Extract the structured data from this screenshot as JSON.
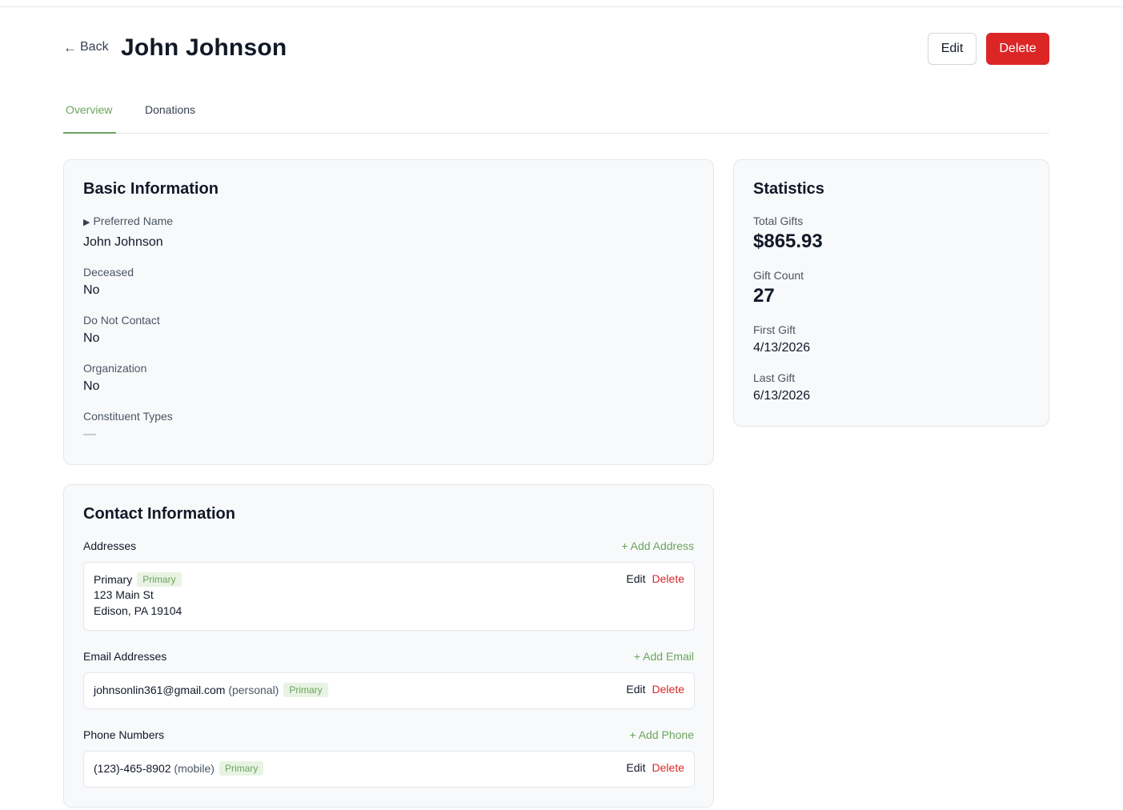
{
  "header": {
    "back_label": "Back",
    "title": "John Johnson",
    "edit_label": "Edit",
    "delete_label": "Delete"
  },
  "tabs": [
    {
      "label": "Overview",
      "active": true
    },
    {
      "label": "Donations",
      "active": false
    }
  ],
  "basic_info": {
    "title": "Basic Information",
    "preferred_name_label": "Preferred Name",
    "preferred_name_value": "John Johnson",
    "deceased_label": "Deceased",
    "deceased_value": "No",
    "do_not_contact_label": "Do Not Contact",
    "do_not_contact_value": "No",
    "organization_label": "Organization",
    "organization_value": "No",
    "constituent_types_label": "Constituent Types",
    "constituent_types_value": "—"
  },
  "statistics": {
    "title": "Statistics",
    "total_gifts_label": "Total Gifts",
    "total_gifts_value": "$865.93",
    "gift_count_label": "Gift Count",
    "gift_count_value": "27",
    "first_gift_label": "First Gift",
    "first_gift_value": "4/13/2026",
    "last_gift_label": "Last Gift",
    "last_gift_value": "6/13/2026"
  },
  "contact": {
    "title": "Contact Information",
    "addresses": {
      "label": "Addresses",
      "add_label": "+ Add Address",
      "items": [
        {
          "type": "Primary",
          "badge": "Primary",
          "line1": "123 Main St",
          "line2": "Edison, PA 19104",
          "edit": "Edit",
          "delete": "Delete"
        }
      ]
    },
    "emails": {
      "label": "Email Addresses",
      "add_label": "+ Add Email",
      "items": [
        {
          "value": "johnsonlin361@gmail.com",
          "kind": "(personal)",
          "badge": "Primary",
          "edit": "Edit",
          "delete": "Delete"
        }
      ]
    },
    "phones": {
      "label": "Phone Numbers",
      "add_label": "+ Add Phone",
      "items": [
        {
          "value": "(123)-465-8902",
          "kind": "(mobile)",
          "badge": "Primary",
          "edit": "Edit",
          "delete": "Delete"
        }
      ]
    }
  },
  "colors": {
    "accent_green": "#6aa55b",
    "danger_red": "#dc2626",
    "card_bg": "#f8f9fb"
  }
}
